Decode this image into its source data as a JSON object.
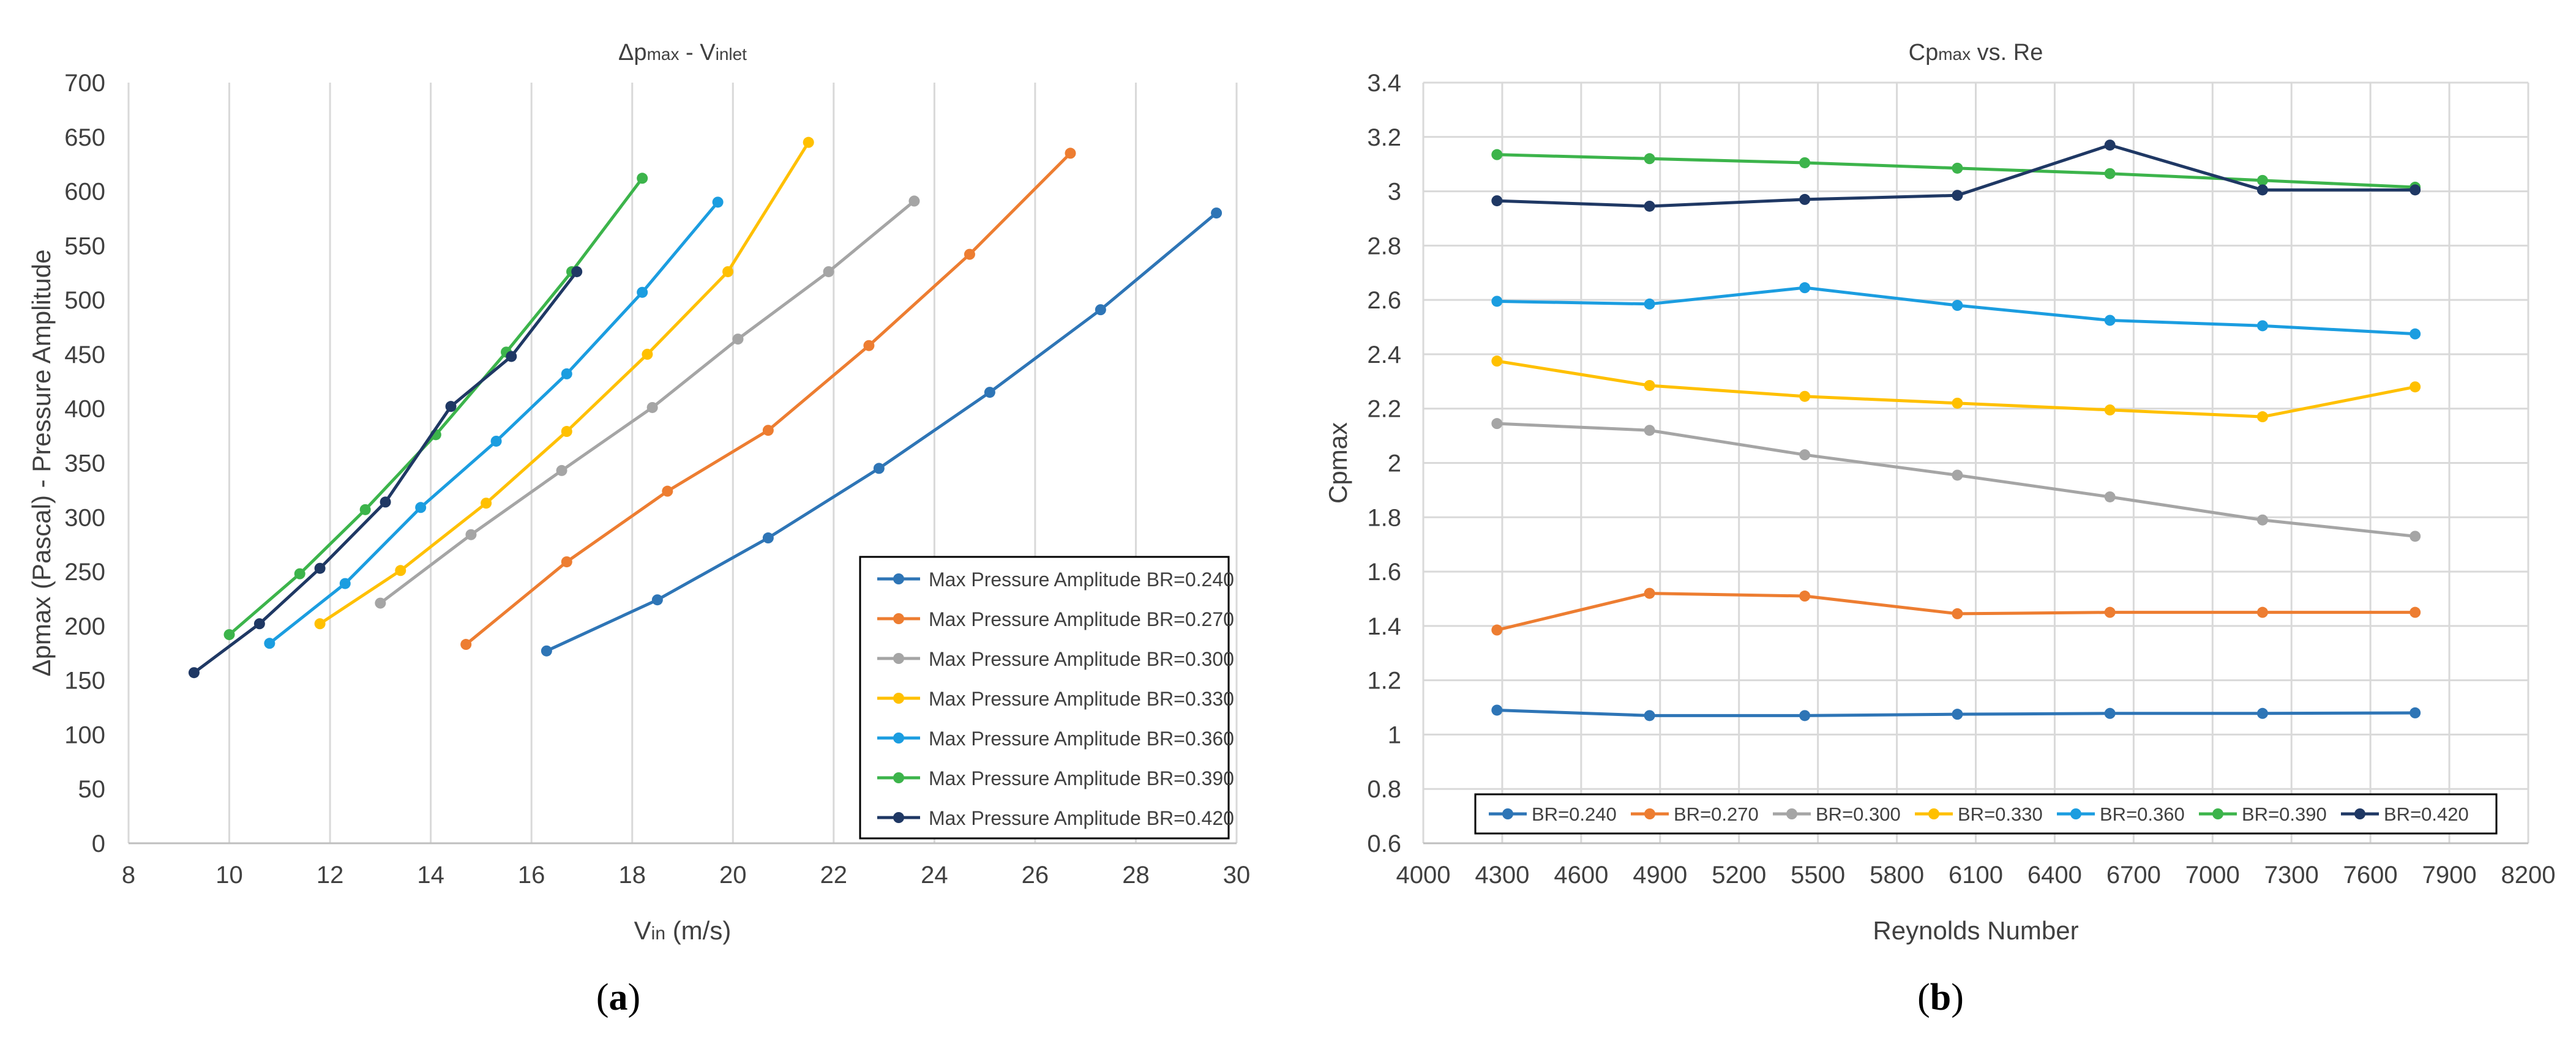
{
  "chart_data": [
    {
      "type": "line",
      "title": "Δpmax - Vinlet",
      "title_main": "Δp",
      "title_sub1": "max",
      "title_mid": " - V",
      "title_sub2": "inlet",
      "xlabel": "Vin (m/s)",
      "xlabel_main": "V",
      "xlabel_sub": "in",
      "xlabel_rest": " (m/s)",
      "ylabel": "Δpmax (Pascal) - Pressure Amplitude",
      "xlim": [
        8,
        30
      ],
      "ylim": [
        0,
        700
      ],
      "xticks": [
        "8",
        "10",
        "12",
        "14",
        "16",
        "18",
        "20",
        "22",
        "24",
        "26",
        "28",
        "30"
      ],
      "yticks": [
        "0",
        "50",
        "100",
        "150",
        "200",
        "250",
        "300",
        "350",
        "400",
        "450",
        "500",
        "550",
        "600",
        "650",
        "700"
      ],
      "grid": "vertical",
      "legend_position": "bottom-right",
      "subfigure_label": "a",
      "series": [
        {
          "name": "Max Pressure Amplitude BR=0.240",
          "color": "#2E75B6",
          "x": [
            16.3,
            18.5,
            20.7,
            22.9,
            25.1,
            27.3,
            29.6
          ],
          "y": [
            177,
            224,
            281,
            345,
            415,
            491,
            580
          ]
        },
        {
          "name": "Max Pressure Amplitude BR=0.270",
          "color": "#ED7D31",
          "x": [
            14.7,
            16.7,
            18.7,
            20.7,
            22.7,
            24.7,
            26.7
          ],
          "y": [
            183,
            259,
            324,
            380,
            458,
            542,
            635
          ]
        },
        {
          "name": "Max Pressure Amplitude BR=0.300",
          "color": "#A5A5A5",
          "x": [
            13.0,
            14.8,
            16.6,
            18.4,
            20.1,
            21.9,
            23.6
          ],
          "y": [
            221,
            284,
            343,
            401,
            464,
            526,
            591
          ]
        },
        {
          "name": "Max Pressure Amplitude BR=0.330",
          "color": "#FFC000",
          "x": [
            11.8,
            13.4,
            15.1,
            16.7,
            18.3,
            19.9,
            21.5
          ],
          "y": [
            202,
            251,
            313,
            379,
            450,
            526,
            645
          ]
        },
        {
          "name": "Max Pressure Amplitude BR=0.360",
          "color": "#1B9DE0",
          "x": [
            10.8,
            12.3,
            13.8,
            15.3,
            16.7,
            18.2,
            19.7
          ],
          "y": [
            184,
            239,
            309,
            370,
            432,
            507,
            590
          ]
        },
        {
          "name": "Max Pressure Amplitude BR=0.390",
          "color": "#3CB44B",
          "x": [
            10.0,
            11.4,
            12.7,
            14.1,
            15.5,
            16.8,
            18.2
          ],
          "y": [
            192,
            248,
            307,
            376,
            452,
            526,
            612
          ]
        },
        {
          "name": "Max Pressure Amplitude BR=0.420",
          "color": "#1F3864",
          "x": [
            9.3,
            10.6,
            11.8,
            13.1,
            14.4,
            15.6,
            16.9
          ],
          "y": [
            157,
            202,
            253,
            314,
            402,
            448,
            526
          ]
        }
      ]
    },
    {
      "type": "line",
      "title": "Cpmax vs. Re",
      "title_main": "Cp",
      "title_sub1": "max",
      "title_mid": " vs. Re",
      "title_sub2": "",
      "xlabel": "Reynolds Number",
      "ylabel": "Cpmax",
      "xlim": [
        4000,
        8200
      ],
      "ylim": [
        0.6,
        3.4
      ],
      "xticks": [
        "4000",
        "4300",
        "4600",
        "4900",
        "5200",
        "5500",
        "5800",
        "6100",
        "6400",
        "6700",
        "7000",
        "7300",
        "7600",
        "7900",
        "8200"
      ],
      "yticks": [
        "0.6",
        "0.8",
        "1",
        "1.2",
        "1.4",
        "1.6",
        "1.8",
        "2",
        "2.2",
        "2.4",
        "2.6",
        "2.8",
        "3",
        "3.2",
        "3.4"
      ],
      "grid": "both",
      "legend_position": "bottom",
      "subfigure_label": "b",
      "x": [
        4280,
        4860,
        5450,
        6030,
        6610,
        7190,
        7770
      ],
      "series": [
        {
          "name": "BR=0.240",
          "color": "#2E75B6",
          "values": [
            1.09,
            1.07,
            1.07,
            1.075,
            1.078,
            1.078,
            1.08
          ]
        },
        {
          "name": "BR=0.270",
          "color": "#ED7D31",
          "values": [
            1.385,
            1.52,
            1.51,
            1.445,
            1.45,
            1.45,
            1.45
          ]
        },
        {
          "name": "BR=0.300",
          "color": "#A5A5A5",
          "values": [
            2.145,
            2.12,
            2.03,
            1.955,
            1.875,
            1.79,
            1.73
          ]
        },
        {
          "name": "BR=0.330",
          "color": "#FFC000",
          "values": [
            2.375,
            2.285,
            2.245,
            2.22,
            2.195,
            2.17,
            2.28
          ]
        },
        {
          "name": "BR=0.360",
          "color": "#1B9DE0",
          "values": [
            2.595,
            2.585,
            2.645,
            2.58,
            2.525,
            2.505,
            2.475
          ]
        },
        {
          "name": "BR=0.390",
          "color": "#3CB44B",
          "values": [
            3.135,
            3.12,
            3.105,
            3.085,
            3.065,
            3.04,
            3.015
          ]
        },
        {
          "name": "BR=0.420",
          "color": "#1F3864",
          "values": [
            2.965,
            2.945,
            2.97,
            2.985,
            3.17,
            3.005,
            3.005
          ]
        }
      ]
    }
  ]
}
